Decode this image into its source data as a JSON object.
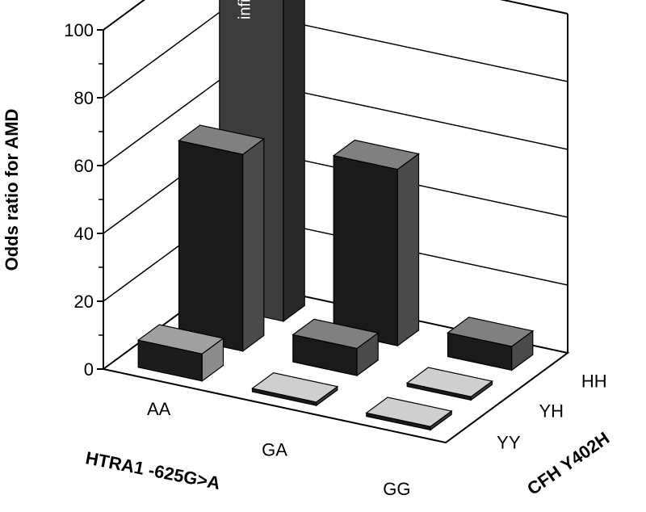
{
  "chart_data": {
    "type": "bar3d",
    "zlabel": "Odds ratio for AMD",
    "xlabel": "HTRA1 -625G>A",
    "ylabel": "CFH Y402H",
    "zlim": [
      0,
      100
    ],
    "zticks": [
      "0",
      "20",
      "40",
      "60",
      "80",
      "100"
    ],
    "htra1_categories": [
      "AA",
      "GA",
      "GG"
    ],
    "cfh_categories": [
      "YY",
      "YH",
      "HH"
    ],
    "bars": [
      {
        "htra1": "AA",
        "cfh": "HH",
        "value": null,
        "label": "infinite"
      },
      {
        "htra1": "AA",
        "cfh": "YH",
        "value": 58
      },
      {
        "htra1": "AA",
        "cfh": "YY",
        "value": 8
      },
      {
        "htra1": "GA",
        "cfh": "HH",
        "value": 52
      },
      {
        "htra1": "GA",
        "cfh": "YH",
        "value": 8
      },
      {
        "htra1": "GA",
        "cfh": "YY",
        "value": 1
      },
      {
        "htra1": "GG",
        "cfh": "HH",
        "value": 7
      },
      {
        "htra1": "GG",
        "cfh": "YH",
        "value": 1
      },
      {
        "htra1": "GG",
        "cfh": "YY",
        "value": 1
      }
    ]
  }
}
